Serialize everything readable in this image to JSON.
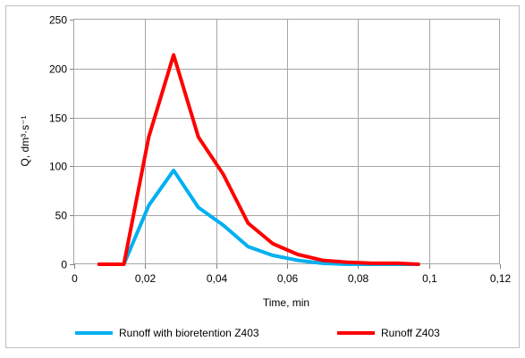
{
  "chart_data": {
    "type": "line",
    "title": "",
    "xlabel": "Time, min",
    "ylabel": "Q, dm³·s⁻¹",
    "xlim": [
      0,
      0.12
    ],
    "ylim": [
      0,
      250
    ],
    "x_ticks": [
      0,
      0.02,
      0.04,
      0.06,
      0.08,
      0.1,
      0.12
    ],
    "x_tick_labels": [
      "0",
      "0,02",
      "0,04",
      "0,06",
      "0,08",
      "0,1",
      "0,12"
    ],
    "y_ticks": [
      0,
      50,
      100,
      150,
      200,
      250
    ],
    "y_tick_labels": [
      "0",
      "50",
      "100",
      "150",
      "200",
      "250"
    ],
    "grid": true,
    "legend_position": "bottom",
    "series": [
      {
        "name": "Runoff with bioretention Z403",
        "color": "#00b0f0",
        "x": [
          0.007,
          0.014,
          0.021,
          0.028,
          0.035,
          0.042,
          0.049,
          0.056,
          0.063,
          0.07,
          0.077,
          0.084,
          0.091,
          0.097
        ],
        "y": [
          0,
          0,
          60,
          96,
          58,
          40,
          18,
          9,
          4,
          1,
          0,
          0,
          0,
          0
        ]
      },
      {
        "name": "Runoff Z403",
        "color": "#ff0000",
        "x": [
          0.007,
          0.014,
          0.021,
          0.028,
          0.035,
          0.042,
          0.049,
          0.056,
          0.063,
          0.07,
          0.077,
          0.084,
          0.091,
          0.097
        ],
        "y": [
          0,
          0,
          130,
          214,
          130,
          92,
          42,
          21,
          10,
          4,
          2,
          1,
          1,
          0
        ]
      }
    ]
  }
}
